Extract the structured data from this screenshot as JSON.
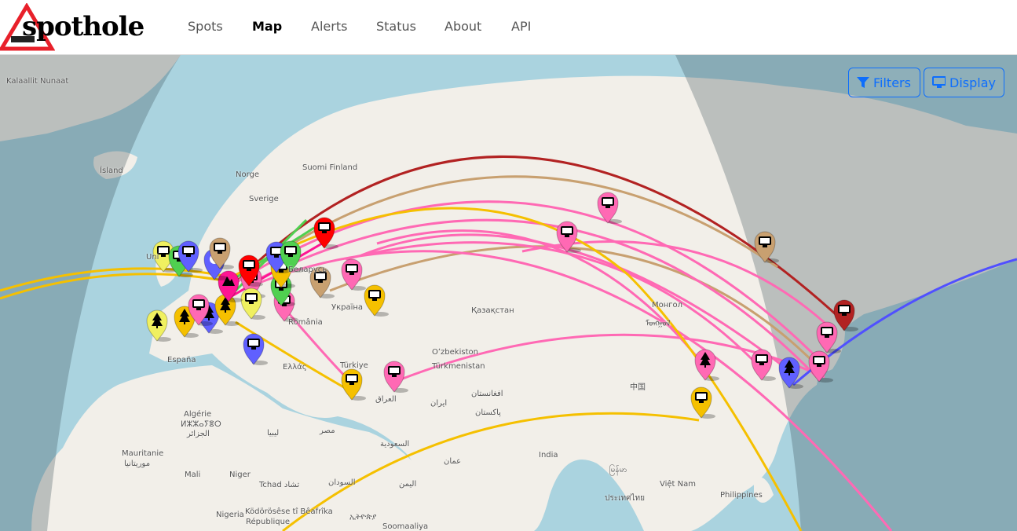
{
  "brand": {
    "name": "spothole"
  },
  "nav": {
    "items": [
      {
        "label": "Spots"
      },
      {
        "label": "Map",
        "active": true
      },
      {
        "label": "Alerts"
      },
      {
        "label": "Status"
      },
      {
        "label": "About"
      },
      {
        "label": "API"
      }
    ]
  },
  "controls": {
    "filters_label": "Filters",
    "display_label": "Display",
    "filters_icon": "filter-icon",
    "display_icon": "monitor-icon",
    "accent": "#0d6efd"
  },
  "map": {
    "colors": {
      "ocean": "#aad3df",
      "land": "#f2efe9",
      "night": "rgba(60,80,90,0.33)"
    },
    "labels": [
      "Kalaallit Nunaat",
      "Ísland",
      "Norge",
      "Sverige",
      "Suomi Finland",
      "Беларусь",
      "Україна",
      "România",
      "España",
      "Ελλάς",
      "Türkiye",
      "العراق",
      "ایران",
      "Қазақстан",
      "Oʻzbekiston",
      "Türkmenistan",
      "افغانستان",
      "پاکستان",
      "Монгол",
      "ᠮᠣᠩᠭᠣᠯ",
      "中国",
      "India",
      "Algérie",
      "ⵍⵣⵣⴰⵢⴻⵔ",
      "الجزائر",
      "ليبيا",
      "مصر",
      "السعودية",
      "عمان",
      "اليمن",
      "Mauritanie",
      "موريتانيا",
      "Mali",
      "Niger",
      "Tchad تشاد",
      "السودان",
      "Nigeria",
      "Ködörösêse tî Bêafrîka",
      "République",
      "ኢትዮጵያ",
      "Soomaaliya",
      "မြန်မာ",
      "ประเทศไทย",
      "Việt Nam",
      "Philippines",
      "Uni"
    ],
    "markers": [
      {
        "color": "#ff69b4",
        "icon": "monitor"
      },
      {
        "color": "#ff69b4",
        "icon": "monitor"
      },
      {
        "color": "#c8a070",
        "icon": "monitor"
      },
      {
        "color": "#b22222",
        "icon": "monitor"
      },
      {
        "color": "#ff69b4",
        "icon": "monitor"
      },
      {
        "color": "#ff69b4",
        "icon": "monitor"
      },
      {
        "color": "#6060ff",
        "icon": "tree"
      },
      {
        "color": "#ff69b4",
        "icon": "monitor"
      },
      {
        "color": "#ff69b4",
        "icon": "tree"
      },
      {
        "color": "#f5c000",
        "icon": "monitor"
      },
      {
        "color": "#ff69b4",
        "icon": "monitor"
      },
      {
        "color": "#f5c000",
        "icon": "monitor"
      },
      {
        "color": "#ff69b4",
        "icon": "monitor"
      },
      {
        "color": "#f5c000",
        "icon": "monitor"
      },
      {
        "color": "#c8a070",
        "icon": "monitor"
      },
      {
        "color": "#ff69b4",
        "icon": "monitor"
      },
      {
        "color": "#ff0000",
        "icon": "monitor"
      },
      {
        "color": "#6060ff",
        "icon": "monitor"
      },
      {
        "color": "#ff69b4",
        "icon": "monitor"
      },
      {
        "color": "#f0f060",
        "icon": "tree"
      },
      {
        "color": "#f5c000",
        "icon": "tree"
      },
      {
        "color": "#6060ff",
        "icon": "tree"
      },
      {
        "color": "#f5c000",
        "icon": "tree"
      },
      {
        "color": "#f0f060",
        "icon": "monitor"
      },
      {
        "color": "#50d050",
        "icon": "monitor"
      },
      {
        "color": "#f5c000",
        "icon": "monitor"
      },
      {
        "color": "#ff0000",
        "icon": "monitor"
      },
      {
        "color": "#6060ff",
        "icon": "monitor"
      },
      {
        "color": "#50d050",
        "icon": "monitor"
      },
      {
        "color": "#ff1493",
        "icon": "mountain"
      },
      {
        "color": "#6060ff",
        "icon": "radiation"
      },
      {
        "color": "#c8a070",
        "icon": "monitor"
      },
      {
        "color": "#f0f060",
        "icon": "monitor"
      },
      {
        "color": "#50d050",
        "icon": "monitor"
      },
      {
        "color": "#6060ff",
        "icon": "monitor"
      },
      {
        "color": "#ff69b4",
        "icon": "monitor"
      }
    ]
  }
}
